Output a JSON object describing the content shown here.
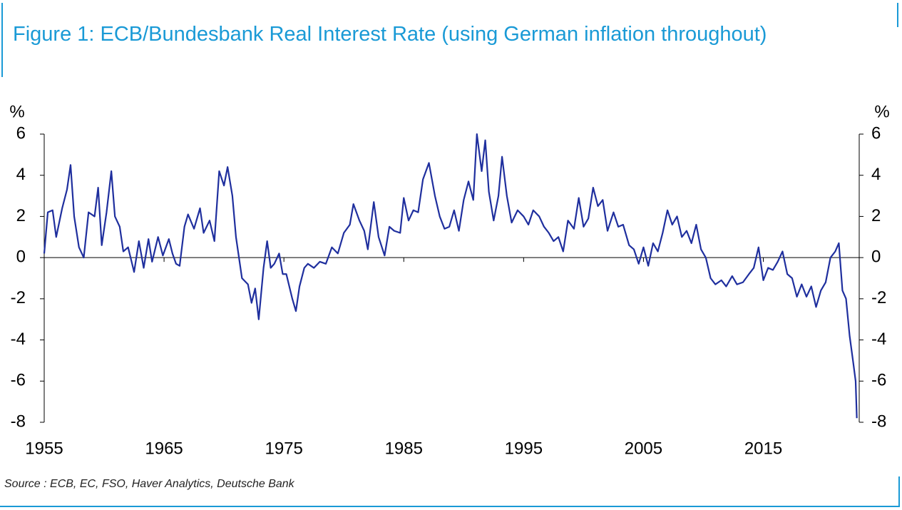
{
  "chart_data": {
    "type": "line",
    "title": "Figure 1: ECB/Bundesbank Real Interest Rate (using German inflation throughout)",
    "y_label": "%",
    "source": "Source : ECB, EC, FSO, Haver Analytics, Deutsche Bank",
    "xlim": [
      1955,
      2023
    ],
    "xticks": [
      1955,
      1965,
      1975,
      1985,
      1995,
      2005,
      2015
    ],
    "ylim": [
      -8,
      6
    ],
    "yticks": [
      -8,
      -6,
      -4,
      -2,
      0,
      2,
      4,
      6
    ],
    "color": "#1f2f9e",
    "x": [
      1955.0,
      1955.3,
      1955.7,
      1956.0,
      1956.5,
      1956.9,
      1957.2,
      1957.5,
      1957.9,
      1958.3,
      1958.7,
      1959.2,
      1959.5,
      1959.8,
      1960.2,
      1960.6,
      1960.9,
      1961.3,
      1961.6,
      1962.0,
      1962.5,
      1962.9,
      1963.3,
      1963.7,
      1964.0,
      1964.5,
      1964.9,
      1965.4,
      1965.7,
      1966.0,
      1966.3,
      1966.7,
      1967.0,
      1967.5,
      1968.0,
      1968.3,
      1968.8,
      1969.2,
      1969.6,
      1970.0,
      1970.3,
      1970.7,
      1971.0,
      1971.5,
      1972.0,
      1972.3,
      1972.6,
      1972.9,
      1973.3,
      1973.6,
      1973.9,
      1974.2,
      1974.6,
      1974.9,
      1975.2,
      1975.7,
      1976.0,
      1976.3,
      1976.7,
      1977.0,
      1977.5,
      1978.0,
      1978.5,
      1979.0,
      1979.5,
      1980.0,
      1980.5,
      1980.8,
      1981.3,
      1981.7,
      1982.0,
      1982.5,
      1982.9,
      1983.4,
      1983.8,
      1984.2,
      1984.7,
      1985.0,
      1985.4,
      1985.8,
      1986.2,
      1986.6,
      1987.1,
      1987.6,
      1988.0,
      1988.4,
      1988.8,
      1989.2,
      1989.6,
      1990.0,
      1990.4,
      1990.8,
      1991.1,
      1991.5,
      1991.8,
      1992.1,
      1992.5,
      1992.9,
      1993.2,
      1993.6,
      1994.0,
      1994.5,
      1995.0,
      1995.4,
      1995.8,
      1996.3,
      1996.7,
      1997.1,
      1997.5,
      1997.9,
      1998.3,
      1998.7,
      1999.2,
      1999.6,
      2000.0,
      2000.4,
      2000.8,
      2001.2,
      2001.6,
      2002.0,
      2002.5,
      2002.9,
      2003.3,
      2003.8,
      2004.2,
      2004.6,
      2005.0,
      2005.4,
      2005.8,
      2006.2,
      2006.6,
      2007.0,
      2007.4,
      2007.8,
      2008.2,
      2008.6,
      2009.0,
      2009.4,
      2009.8,
      2010.2,
      2010.6,
      2011.0,
      2011.5,
      2011.9,
      2012.4,
      2012.8,
      2013.3,
      2013.8,
      2014.2,
      2014.6,
      2015.0,
      2015.4,
      2015.8,
      2016.2,
      2016.6,
      2017.0,
      2017.4,
      2017.8,
      2018.2,
      2018.6,
      2019.0,
      2019.4,
      2019.8,
      2020.2,
      2020.6,
      2021.0,
      2021.3,
      2021.6,
      2021.9,
      2022.2,
      2022.5,
      2022.7,
      2022.8
    ],
    "values": [
      0.2,
      2.2,
      2.3,
      1.0,
      2.4,
      3.3,
      4.5,
      2.0,
      0.5,
      0.0,
      2.2,
      2.0,
      3.4,
      0.6,
      2.2,
      4.2,
      2.0,
      1.5,
      0.3,
      0.5,
      -0.7,
      0.8,
      -0.5,
      0.9,
      -0.2,
      1.0,
      0.1,
      0.9,
      0.2,
      -0.3,
      -0.4,
      1.5,
      2.1,
      1.4,
      2.4,
      1.2,
      1.8,
      0.8,
      4.2,
      3.5,
      4.4,
      3.0,
      1.0,
      -1.0,
      -1.3,
      -2.2,
      -1.5,
      -3.0,
      -0.5,
      0.8,
      -0.5,
      -0.3,
      0.2,
      -0.8,
      -0.8,
      -2.0,
      -2.6,
      -1.4,
      -0.5,
      -0.3,
      -0.5,
      -0.2,
      -0.3,
      0.5,
      0.2,
      1.2,
      1.6,
      2.6,
      1.8,
      1.3,
      0.4,
      2.7,
      1.0,
      0.1,
      1.5,
      1.3,
      1.2,
      2.9,
      1.8,
      2.3,
      2.2,
      3.8,
      4.6,
      3.0,
      2.0,
      1.4,
      1.5,
      2.3,
      1.3,
      2.8,
      3.7,
      2.8,
      6.0,
      4.2,
      5.7,
      3.2,
      1.8,
      3.0,
      4.9,
      3.0,
      1.7,
      2.3,
      2.0,
      1.6,
      2.3,
      2.0,
      1.5,
      1.2,
      0.8,
      1.0,
      0.3,
      1.8,
      1.4,
      2.9,
      1.5,
      1.9,
      3.4,
      2.5,
      2.8,
      1.3,
      2.2,
      1.5,
      1.6,
      0.6,
      0.4,
      -0.3,
      0.5,
      -0.4,
      0.7,
      0.3,
      1.2,
      2.3,
      1.6,
      2.0,
      1.0,
      1.3,
      0.7,
      1.6,
      0.4,
      0.0,
      -1.0,
      -1.3,
      -1.1,
      -1.4,
      -0.9,
      -1.3,
      -1.2,
      -0.8,
      -0.5,
      0.5,
      -1.1,
      -0.5,
      -0.6,
      -0.2,
      0.3,
      -0.8,
      -1.0,
      -1.9,
      -1.3,
      -1.9,
      -1.4,
      -2.4,
      -1.6,
      -1.2,
      0.0,
      0.3,
      0.7,
      -1.6,
      -2.0,
      -3.8,
      -5.1,
      -6.0,
      -7.8
    ]
  }
}
